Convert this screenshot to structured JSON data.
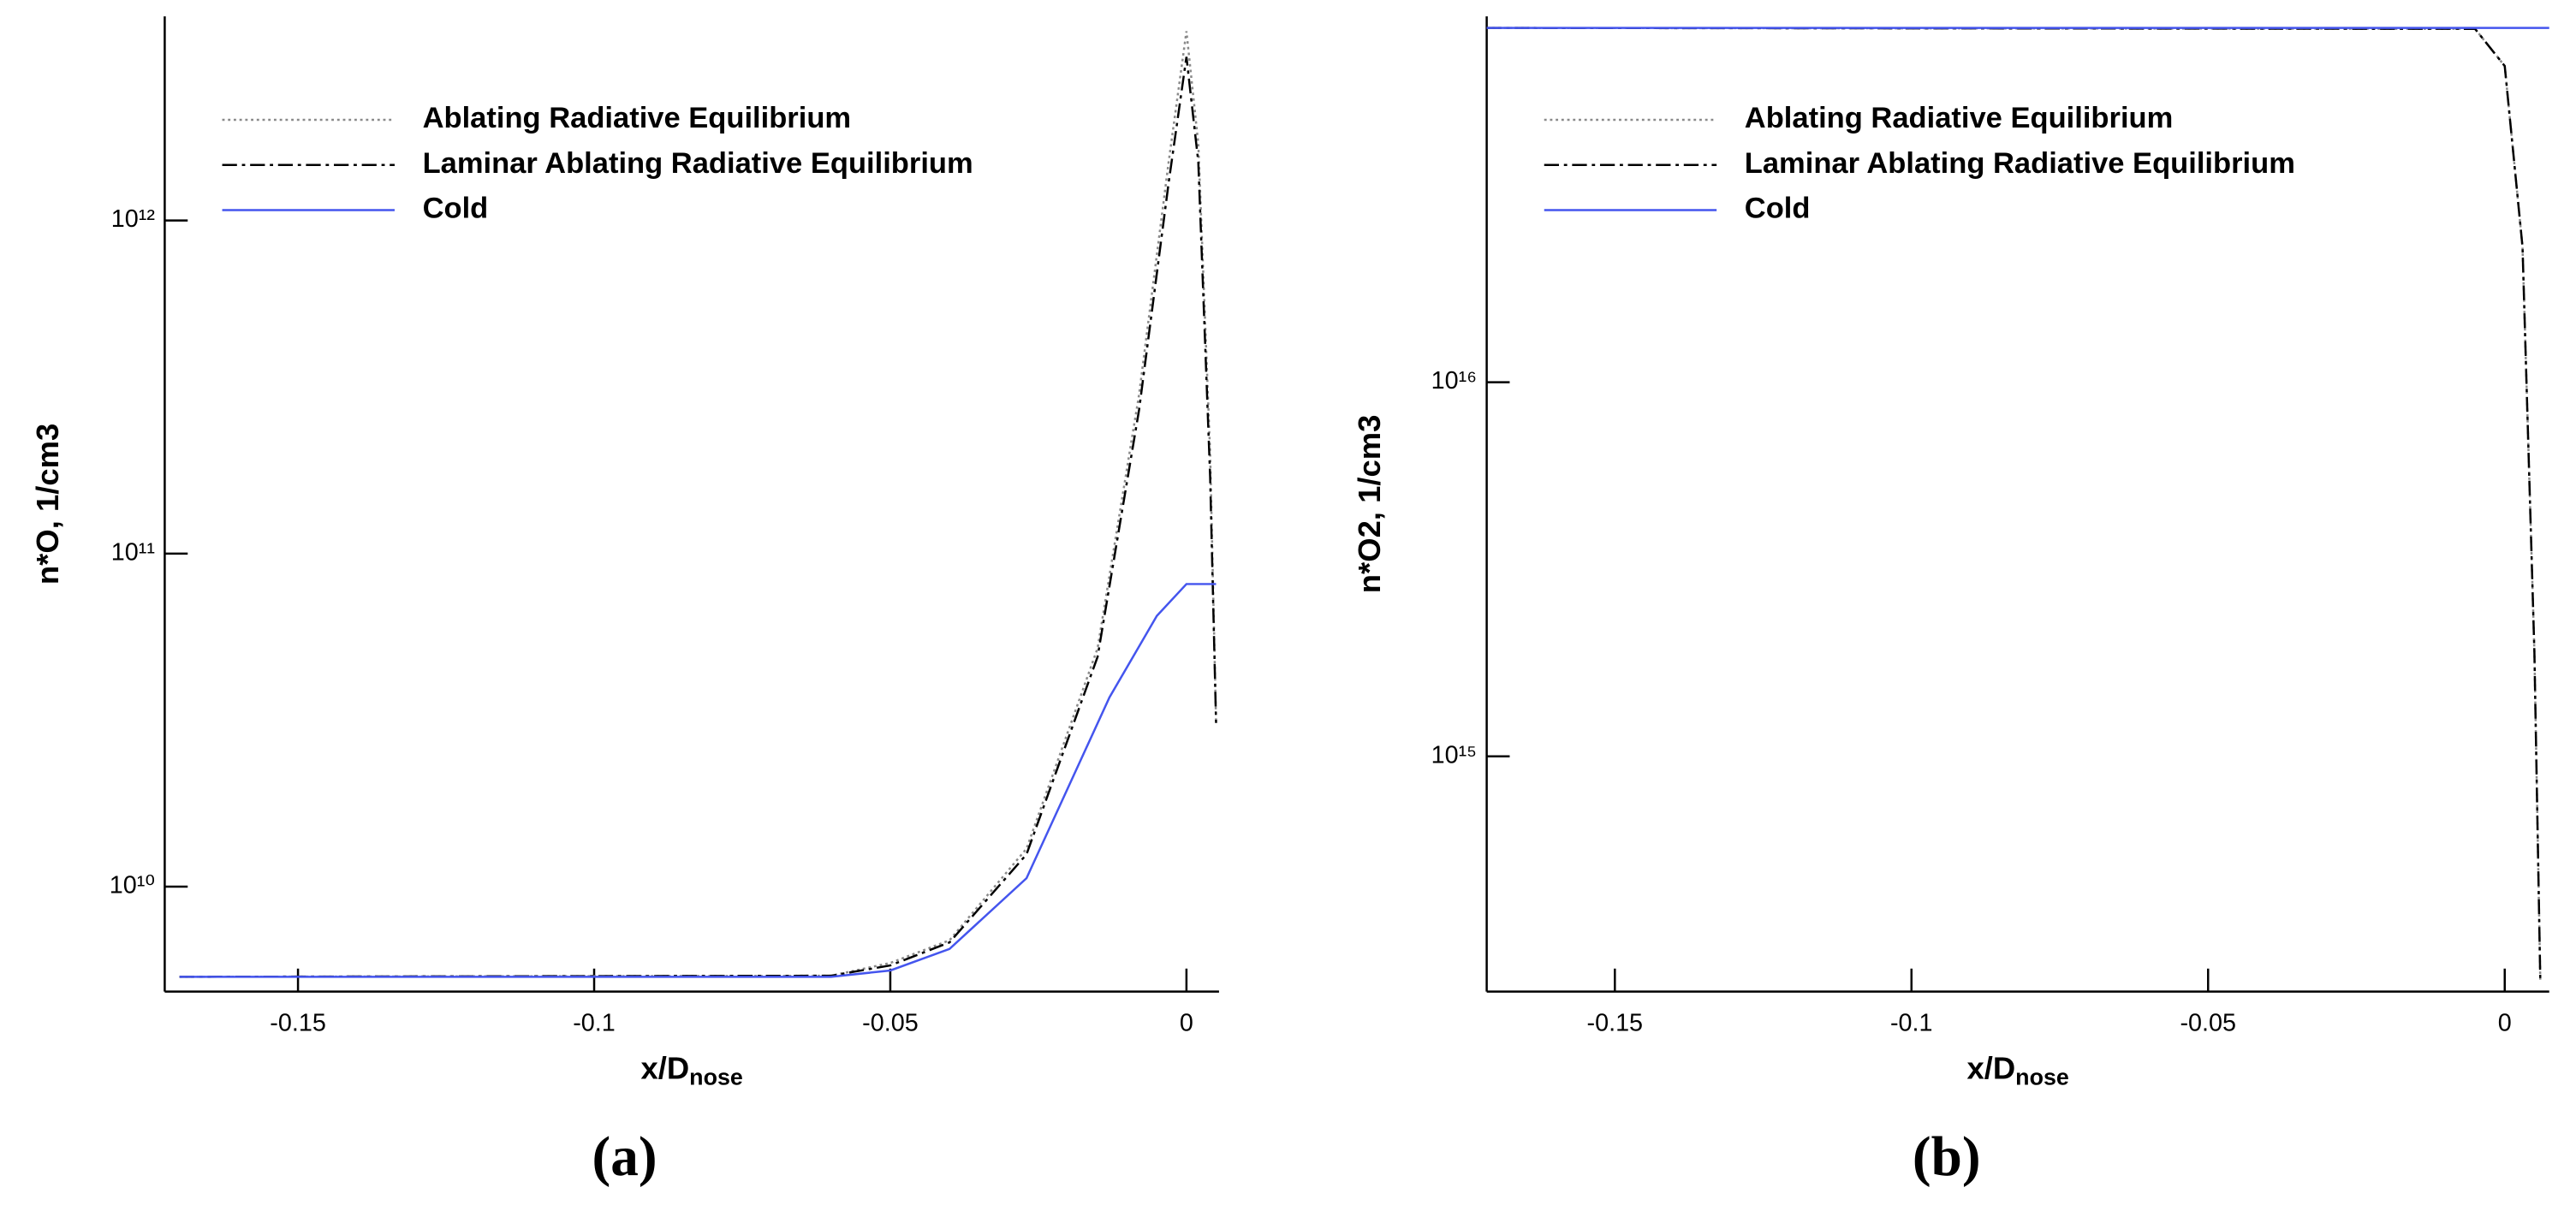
{
  "chart_data": [
    {
      "type": "line",
      "panel_label": "(a)",
      "ylabel": "n*O, 1/cm3",
      "xlabel": "x/D",
      "xlabel_sub": "nose",
      "xlim": [
        -0.1725,
        0.0055
      ],
      "xticks": [
        -0.15,
        -0.1,
        -0.05,
        0
      ],
      "ylim": [
        4840000000.0,
        4100000000000.0
      ],
      "log_y": true,
      "yticks": [
        {
          "value": 10000000000.0,
          "label": "10¹⁰"
        },
        {
          "value": 100000000000.0,
          "label": "10¹¹"
        },
        {
          "value": 1000000000000.0,
          "label": "10¹²"
        }
      ],
      "legend": "upper left",
      "series": [
        {
          "name": "Ablating Radiative Equilibrium",
          "color": "#8a8a8a",
          "dash": "dotted",
          "x": [
            -0.17,
            -0.06,
            -0.05,
            -0.04,
            -0.027,
            -0.015,
            -0.008,
            -0.003,
            0,
            0.002,
            0.004,
            0.005
          ],
          "values": [
            5360000000.0,
            5400000000.0,
            5900000000.0,
            6900000000.0,
            13000000000.0,
            52000000000.0,
            300000000000.0,
            1500000000000.0,
            3700000000000.0,
            1700000000000.0,
            200000000000.0,
            31000000000.0
          ]
        },
        {
          "name": "Laminar Ablating Radiative Equilibrium",
          "color": "#000000",
          "dash": "dashdot",
          "x": [
            -0.17,
            -0.06,
            -0.05,
            -0.04,
            -0.027,
            -0.015,
            -0.008,
            -0.003,
            0,
            0.002,
            0.004,
            0.005
          ],
          "values": [
            5360000000.0,
            5400000000.0,
            5800000000.0,
            6800000000.0,
            12500000000.0,
            49000000000.0,
            270000000000.0,
            1300000000000.0,
            3100000000000.0,
            1500000000000.0,
            170000000000.0,
            31000000000.0
          ]
        },
        {
          "name": "Cold",
          "color": "#4455ee",
          "dash": "solid",
          "x": [
            -0.17,
            -0.06,
            -0.05,
            -0.04,
            -0.027,
            -0.013,
            -0.005,
            0,
            0.005
          ],
          "values": [
            5360000000.0,
            5360000000.0,
            5600000000.0,
            6500000000.0,
            10600000000.0,
            37000000000.0,
            65000000000.0,
            81000000000.0,
            81000000000.0
          ]
        }
      ]
    },
    {
      "type": "line",
      "panel_label": "(b)",
      "ylabel": "n*O2, 1/cm3",
      "xlabel": "x/D",
      "xlabel_sub": "nose",
      "xlim": [
        -0.1716,
        0.0075
      ],
      "xticks": [
        -0.15,
        -0.1,
        -0.05,
        0
      ],
      "ylim": [
        235000000000000.0,
        9.5e+16
      ],
      "log_y": true,
      "yticks": [
        {
          "value": 1000000000000000.0,
          "label": "10¹⁵"
        },
        {
          "value": 1e+16,
          "label": "10¹⁶"
        }
      ],
      "legend": "upper left",
      "series": [
        {
          "name": "Ablating Radiative Equilibrium",
          "color": "#8a8a8a",
          "dash": "dotted",
          "x": [
            -0.1716,
            -0.005,
            0,
            0.003,
            0.005,
            0.006
          ],
          "values": [
            8.85e+16,
            8.8e+16,
            7e+16,
            2.3e+16,
            1900000000000000.0,
            250000000000000.0
          ]
        },
        {
          "name": "Laminar Ablating Radiative Equilibrium",
          "color": "#000000",
          "dash": "dashdot",
          "x": [
            -0.1716,
            -0.005,
            0,
            0.003,
            0.005,
            0.006
          ],
          "values": [
            8.85e+16,
            8.8e+16,
            7e+16,
            2.3e+16,
            1900000000000000.0,
            250000000000000.0
          ]
        },
        {
          "name": "Cold",
          "color": "#4455ee",
          "dash": "solid",
          "x": [
            -0.1716,
            0.0075
          ],
          "values": [
            8.85e+16,
            8.85e+16
          ]
        }
      ]
    }
  ]
}
